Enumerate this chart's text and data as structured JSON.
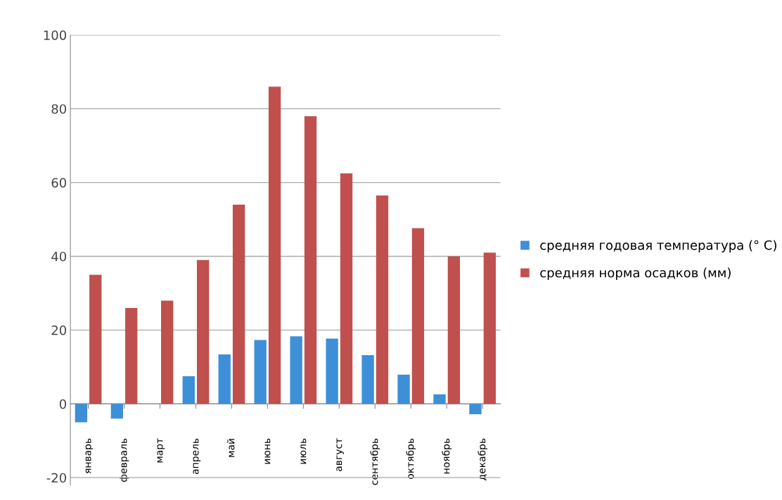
{
  "chart_data": {
    "type": "bar",
    "categories": [
      "январь",
      "февраль",
      "март",
      "апрель",
      "май",
      "июнь",
      "июль",
      "август",
      "сентябрь",
      "октябрь",
      "ноябрь",
      "декабрь"
    ],
    "series": [
      {
        "name": "средняя годовая температура (° C)",
        "color": "#3d8fd8",
        "values": [
          -5,
          -4,
          0,
          7.5,
          13.4,
          17.3,
          18.3,
          17.7,
          13.2,
          7.9,
          2.6,
          -2.8
        ]
      },
      {
        "name": "средняя норма осадков (мм)",
        "color": "#c0504d",
        "values": [
          35,
          26,
          28,
          39,
          54,
          86,
          78,
          62.5,
          56.5,
          47.6,
          40,
          41
        ]
      }
    ],
    "ylim": [
      -22,
      100
    ],
    "yticks": [
      -20,
      0,
      20,
      40,
      60,
      80,
      100
    ],
    "grid": "y",
    "legend": "right"
  }
}
